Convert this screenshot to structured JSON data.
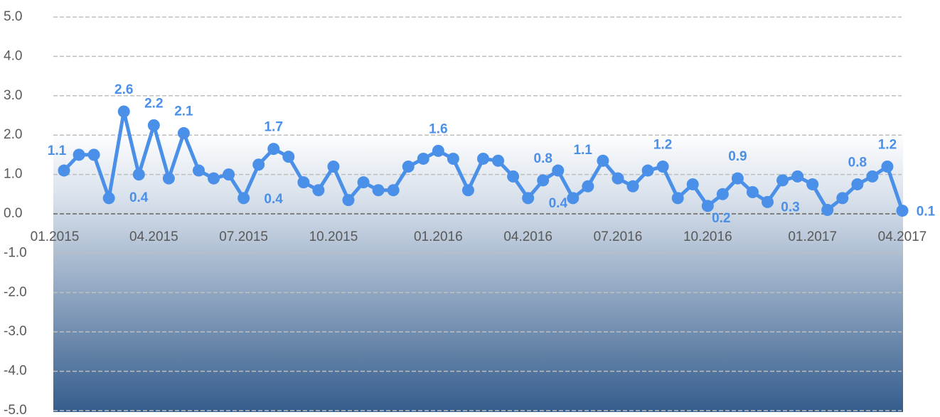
{
  "chart_data": {
    "type": "line",
    "categories": [
      "01.2015",
      null,
      null,
      null,
      null,
      null,
      "04.2015",
      null,
      null,
      null,
      null,
      null,
      "07.2015",
      null,
      null,
      null,
      null,
      null,
      "10.2015",
      null,
      null,
      null,
      null,
      null,
      null,
      "01.2016",
      null,
      null,
      null,
      null,
      null,
      "04.2016",
      null,
      null,
      null,
      null,
      null,
      "07.2016",
      null,
      null,
      null,
      null,
      null,
      "10.2016",
      null,
      null,
      null,
      null,
      null,
      null,
      "01.2017",
      null,
      null,
      null,
      null,
      null,
      "04.2017"
    ],
    "series": [
      {
        "color": "#4a8fe8",
        "values": [
          1.1,
          1.5,
          1.5,
          0.4,
          2.6,
          1.0,
          2.25,
          0.9,
          2.05,
          1.1,
          0.9,
          1.0,
          0.4,
          1.25,
          1.65,
          1.45,
          0.8,
          0.6,
          1.2,
          0.35,
          0.8,
          0.6,
          0.6,
          1.2,
          1.4,
          1.6,
          1.4,
          0.6,
          1.4,
          1.35,
          0.95,
          0.4,
          0.85,
          1.1,
          0.4,
          0.7,
          1.35,
          0.9,
          0.7,
          1.1,
          1.2,
          0.4,
          0.75,
          0.2,
          0.5,
          0.9,
          0.55,
          0.3,
          0.85,
          0.95,
          0.75,
          0.1,
          0.4,
          0.75,
          0.95,
          1.2,
          0.08
        ],
        "value_labels": [
          "1.1",
          null,
          null,
          "0.4",
          "2.6",
          null,
          "2.2",
          null,
          "2.1",
          null,
          null,
          null,
          "0.4",
          null,
          "1.7",
          null,
          null,
          null,
          null,
          null,
          null,
          null,
          null,
          null,
          null,
          "1.6",
          null,
          null,
          null,
          null,
          null,
          null,
          "0.8",
          "1.1",
          "0.4",
          null,
          null,
          null,
          null,
          null,
          "1.2",
          null,
          null,
          "0.2",
          null,
          "0.9",
          null,
          "0.3",
          null,
          null,
          null,
          null,
          null,
          "0.8",
          null,
          "1.2",
          "0.1"
        ]
      }
    ],
    "ylim": [
      -5,
      5
    ],
    "yticks": [
      {
        "value": -5,
        "label": "-5.0"
      },
      {
        "value": -4,
        "label": "-4.0"
      },
      {
        "value": -3,
        "label": "-3.0"
      },
      {
        "value": -2,
        "label": "-2.0"
      },
      {
        "value": -1,
        "label": "-1.0"
      },
      {
        "value": 0,
        "label": "0.0"
      },
      {
        "value": 1,
        "label": "1.0"
      },
      {
        "value": 2,
        "label": "2.0"
      },
      {
        "value": 3,
        "label": "3.0"
      },
      {
        "value": 4,
        "label": "4.0"
      },
      {
        "value": 5,
        "label": "5.0"
      }
    ],
    "grid": true
  }
}
